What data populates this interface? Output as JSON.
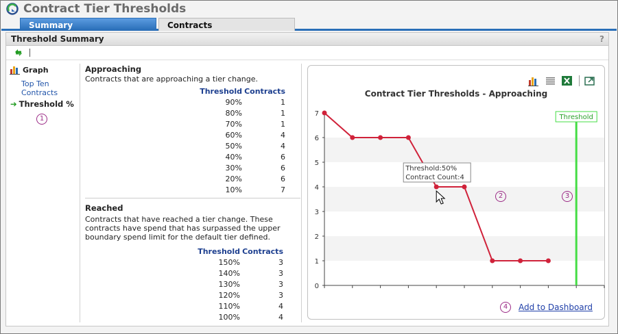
{
  "app": {
    "title": "Contract Tier Thresholds"
  },
  "tabs": [
    {
      "label": "Summary",
      "active": true
    },
    {
      "label": "Contracts",
      "active": false
    }
  ],
  "panel": {
    "title": "Threshold Summary",
    "help": "?"
  },
  "nav": {
    "graph_label": "Graph",
    "items": [
      {
        "label": "Top Ten Contracts"
      },
      {
        "label": "Threshold %",
        "active": true
      }
    ]
  },
  "approaching": {
    "title": "Approaching",
    "description": "Contracts that are approaching a tier change.",
    "headers": [
      "Threshold",
      "Contracts"
    ],
    "rows": [
      [
        "90%",
        "1"
      ],
      [
        "80%",
        "1"
      ],
      [
        "70%",
        "1"
      ],
      [
        "60%",
        "4"
      ],
      [
        "50%",
        "4"
      ],
      [
        "40%",
        "6"
      ],
      [
        "30%",
        "6"
      ],
      [
        "20%",
        "6"
      ],
      [
        "10%",
        "7"
      ]
    ]
  },
  "reached": {
    "title": "Reached",
    "description": "Contracts that have reached a tier change. These contracts have spend that has surpassed the upper boundary spend limit for the default tier defined.",
    "headers": [
      "Threshold",
      "Contracts"
    ],
    "rows": [
      [
        "150%",
        "3"
      ],
      [
        "140%",
        "3"
      ],
      [
        "130%",
        "3"
      ],
      [
        "120%",
        "3"
      ],
      [
        "110%",
        "4"
      ],
      [
        "100%",
        "4"
      ]
    ]
  },
  "callouts": [
    "1",
    "2",
    "3",
    "4"
  ],
  "chart_data": {
    "type": "line",
    "title": "Contract Tier Thresholds - Approaching",
    "x": [
      "10%",
      "20%",
      "30%",
      "40%",
      "50%",
      "60%",
      "70%",
      "80%",
      "90%"
    ],
    "y": [
      7,
      6,
      6,
      6,
      4,
      4,
      1,
      1,
      1
    ],
    "x_ticks": [
      "10%",
      "20%",
      "30%",
      "40%",
      "50%",
      "60%",
      "70%",
      "80%",
      "90%",
      "100%",
      "110%"
    ],
    "ylim": [
      0,
      7
    ],
    "y_ticks": [
      0,
      1,
      2,
      3,
      4,
      5,
      6,
      7
    ],
    "threshold_x": "100%",
    "threshold_label": "Threshold",
    "line_color": "#d0223a",
    "threshold_color": "#44dd44",
    "tooltip": {
      "line1": "Threshold:50%",
      "line2": "Contract Count:4",
      "x": "50%",
      "y": 4
    }
  },
  "chart_tools": [
    "bar-chart-icon",
    "table-view-icon",
    "excel-export-icon",
    "popout-icon"
  ],
  "add_to_dashboard": "Add to Dashboard"
}
